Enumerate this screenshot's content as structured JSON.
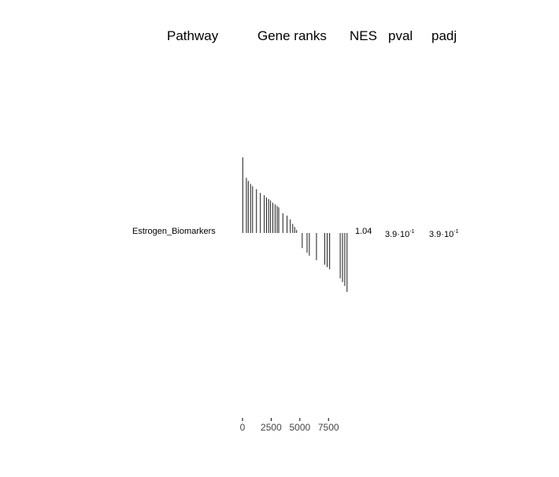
{
  "header": {
    "pathway": "Pathway",
    "gene_ranks": "Gene ranks",
    "nes": "NES",
    "pval": "pval",
    "padj": "padj"
  },
  "row": {
    "pathway": "Estrogen_Biomarkers",
    "nes": "1.04",
    "pval_mantissa": "3.9·10",
    "pval_exponent": "-1",
    "padj_mantissa": "3.9·10",
    "padj_exponent": "-1"
  },
  "chart_data": {
    "type": "bar",
    "description_axis": "gene rank",
    "xlim": [
      0,
      9200
    ],
    "x_ticks": [
      0,
      2500,
      5000,
      7500
    ],
    "x_tick_labels": [
      "0",
      "2500",
      "5000",
      "7500"
    ],
    "stat_range": [
      -1,
      1
    ],
    "gene_hits": [
      {
        "rank": 20,
        "stat": 1.0
      },
      {
        "rank": 340,
        "stat": 0.73
      },
      {
        "rank": 500,
        "stat": 0.69
      },
      {
        "rank": 700,
        "stat": 0.65
      },
      {
        "rank": 880,
        "stat": 0.62
      },
      {
        "rank": 1220,
        "stat": 0.58
      },
      {
        "rank": 1560,
        "stat": 0.53
      },
      {
        "rank": 1900,
        "stat": 0.5
      },
      {
        "rank": 2100,
        "stat": 0.47
      },
      {
        "rank": 2280,
        "stat": 0.45
      },
      {
        "rank": 2450,
        "stat": 0.43
      },
      {
        "rank": 2650,
        "stat": 0.4
      },
      {
        "rank": 2840,
        "stat": 0.38
      },
      {
        "rank": 3020,
        "stat": 0.36
      },
      {
        "rank": 3160,
        "stat": 0.34
      },
      {
        "rank": 3520,
        "stat": 0.26
      },
      {
        "rank": 3890,
        "stat": 0.23
      },
      {
        "rank": 4170,
        "stat": 0.18
      },
      {
        "rank": 4380,
        "stat": 0.12
      },
      {
        "rank": 4550,
        "stat": 0.08
      },
      {
        "rank": 4720,
        "stat": 0.04
      },
      {
        "rank": 5210,
        "stat": -0.2
      },
      {
        "rank": 5630,
        "stat": -0.26
      },
      {
        "rank": 5830,
        "stat": -0.3
      },
      {
        "rank": 6450,
        "stat": -0.36
      },
      {
        "rank": 7180,
        "stat": -0.42
      },
      {
        "rank": 7380,
        "stat": -0.45
      },
      {
        "rank": 7600,
        "stat": -0.48
      },
      {
        "rank": 8520,
        "stat": -0.6
      },
      {
        "rank": 8720,
        "stat": -0.65
      },
      {
        "rank": 8920,
        "stat": -0.7
      },
      {
        "rank": 9120,
        "stat": -0.78
      }
    ]
  }
}
